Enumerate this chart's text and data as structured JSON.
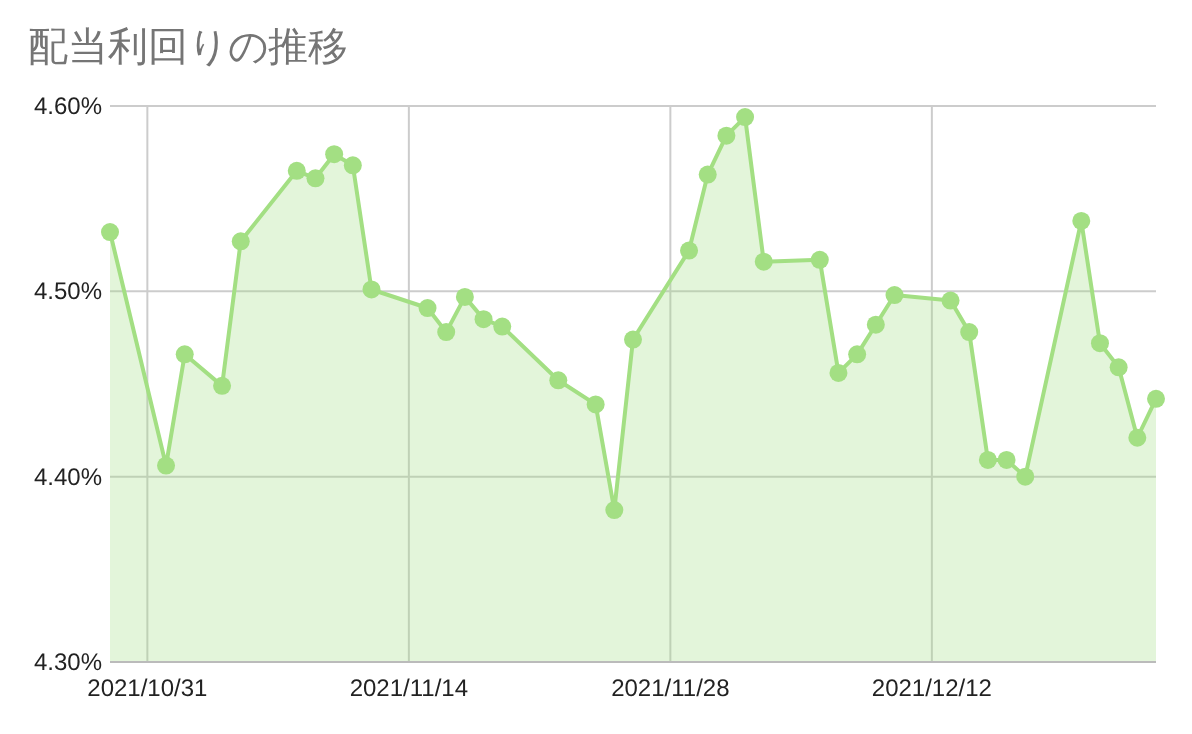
{
  "chart_data": {
    "type": "area",
    "title": "配当利回りの推移",
    "x": [
      "2021-10-29",
      "2021-11-01",
      "2021-11-02",
      "2021-11-04",
      "2021-11-05",
      "2021-11-08",
      "2021-11-09",
      "2021-11-10",
      "2021-11-11",
      "2021-11-12",
      "2021-11-15",
      "2021-11-16",
      "2021-11-17",
      "2021-11-18",
      "2021-11-19",
      "2021-11-22",
      "2021-11-24",
      "2021-11-25",
      "2021-11-26",
      "2021-11-29",
      "2021-11-30",
      "2021-12-01",
      "2021-12-02",
      "2021-12-03",
      "2021-12-06",
      "2021-12-07",
      "2021-12-08",
      "2021-12-09",
      "2021-12-10",
      "2021-12-13",
      "2021-12-14",
      "2021-12-15",
      "2021-12-16",
      "2021-12-17",
      "2021-12-20",
      "2021-12-21",
      "2021-12-22",
      "2021-12-23",
      "2021-12-24"
    ],
    "series": [
      {
        "color": "#a3df83",
        "values": [
          4.532,
          4.406,
          4.466,
          4.449,
          4.527,
          4.565,
          4.561,
          4.574,
          4.568,
          4.501,
          4.491,
          4.478,
          4.497,
          4.485,
          4.481,
          4.452,
          4.439,
          4.382,
          4.474,
          4.522,
          4.563,
          4.584,
          4.594,
          4.516,
          4.517,
          4.456,
          4.466,
          4.482,
          4.498,
          4.495,
          4.478,
          4.409,
          4.409,
          4.4,
          4.538,
          4.472,
          4.459,
          4.421,
          4.442
        ]
      }
    ],
    "xlim": [
      "2021-10-29",
      "2021-12-24"
    ],
    "xticks": [
      {
        "value": "2021-10-31",
        "label": "2021/10/31"
      },
      {
        "value": "2021-11-14",
        "label": "2021/11/14"
      },
      {
        "value": "2021-11-28",
        "label": "2021/11/28"
      },
      {
        "value": "2021-12-12",
        "label": "2021/12/12"
      }
    ],
    "ylim": [
      4.3,
      4.6
    ],
    "yticks": [
      {
        "value": 4.3,
        "label": "4.30%"
      },
      {
        "value": 4.4,
        "label": "4.40%"
      },
      {
        "value": 4.5,
        "label": "4.50%"
      },
      {
        "value": 4.6,
        "label": "4.60%"
      }
    ],
    "grid": true,
    "marker": "circle"
  }
}
